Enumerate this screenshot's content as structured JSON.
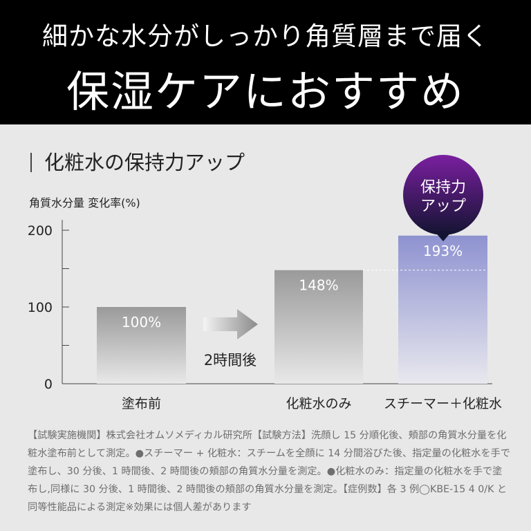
{
  "hero": {
    "subtitle": "細かな水分がしっかり角質層まで届く",
    "title": "保湿ケアにおすすめ"
  },
  "section_title": "化粧水の保持力アップ",
  "chart_data": {
    "type": "bar",
    "ylabel": "角質水分量 変化率(%)",
    "ylim": [
      0,
      200
    ],
    "y_ticks": [
      0,
      100,
      200
    ],
    "y_tick_labels": [
      "0",
      "100",
      "200"
    ],
    "categories": [
      "塗布前",
      "化粧水のみ",
      "スチーマー＋化粧水"
    ],
    "values": [
      100,
      148,
      193
    ],
    "value_labels": [
      "100%",
      "148%",
      "193%"
    ],
    "arrow_label": "2時間後",
    "callout": [
      "保持力",
      "アップ"
    ],
    "colors": {
      "gray_bar_top": "#9a9a9a",
      "gray_bar_bottom": "#e8e8e8",
      "accent_bar_top": "#8e92d0",
      "accent_bar_bottom": "#e8e8ee",
      "callout_top": "#7a1fa0",
      "callout_bottom": "#141432"
    }
  },
  "footnote": "【試験実施機関】株式会社オムソメディカル研究所【試験方法】洗顔し 15 分順化後、頬部の角質水分量を化粧水塗布前として測定。●スチーマー + 化粧水：スチームを全顔に 14 分間浴びた後、指定量の化粧水を手で塗布し、30 分後、1 時間後、2 時間後の頬部の角質水分量を測定。●化粧水のみ：指定量の化粧水を手で塗布し,同様に 30 分後、1 時間後、2 時間後の頬部の角質水分量を測定。【症例数】各 3 例◯KBE-15 4 0/K と同等性能品による測定※効果には個人差があります"
}
